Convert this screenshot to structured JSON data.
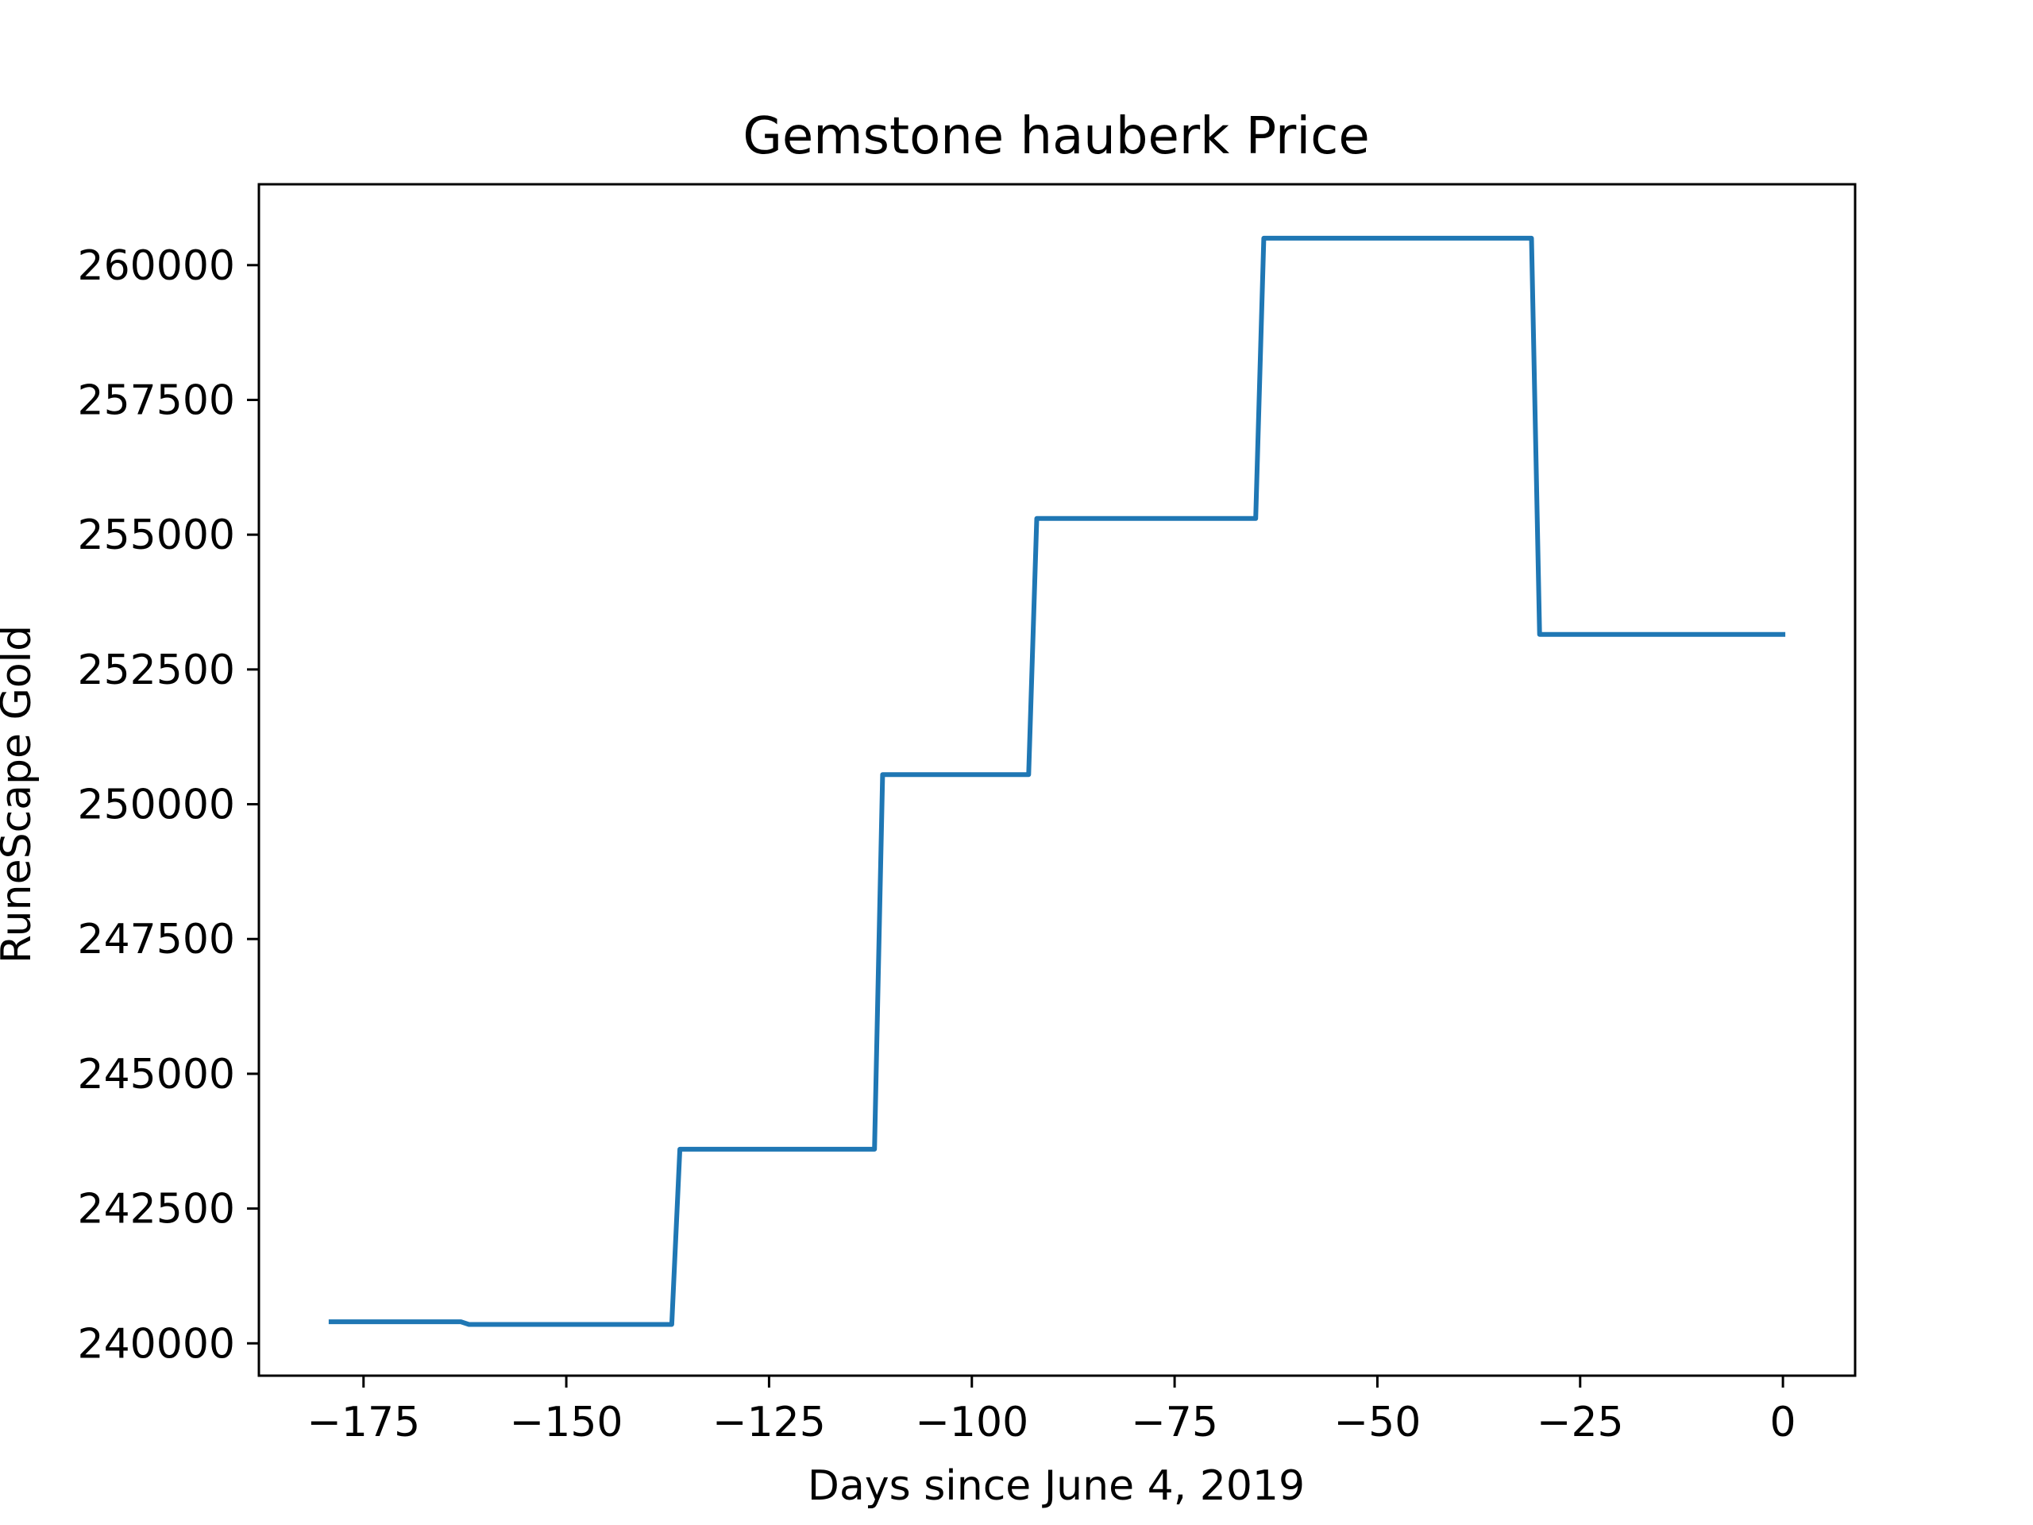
{
  "chart_data": {
    "type": "line",
    "title": "Gemstone hauberk Price",
    "xlabel": "Days since June 4, 2019",
    "ylabel": "RuneScape Gold",
    "xlim": [
      -187.9,
      8.9
    ],
    "ylim": [
      239400,
      261500
    ],
    "xticks": [
      -175,
      -150,
      -125,
      -100,
      -75,
      -50,
      -25,
      0
    ],
    "xtick_labels": [
      "−175",
      "−150",
      "−125",
      "−100",
      "−75",
      "−50",
      "−25",
      "0"
    ],
    "yticks": [
      240000,
      242500,
      245000,
      247500,
      250000,
      252500,
      255000,
      257500,
      260000
    ],
    "ytick_labels": [
      "240000",
      "242500",
      "245000",
      "247500",
      "250000",
      "252500",
      "255000",
      "257500",
      "260000"
    ],
    "grid": false,
    "series": [
      {
        "color": "#1f77b4",
        "points": [
          [
            -179,
            240400
          ],
          [
            -163,
            240400
          ],
          [
            -162,
            240350
          ],
          [
            -137,
            240350
          ],
          [
            -136,
            243600
          ],
          [
            -112,
            243600
          ],
          [
            -111,
            250550
          ],
          [
            -93,
            250550
          ],
          [
            -92,
            255300
          ],
          [
            -65,
            255300
          ],
          [
            -64,
            260500
          ],
          [
            -31,
            260500
          ],
          [
            -30,
            253150
          ],
          [
            0,
            253150
          ]
        ]
      }
    ]
  }
}
